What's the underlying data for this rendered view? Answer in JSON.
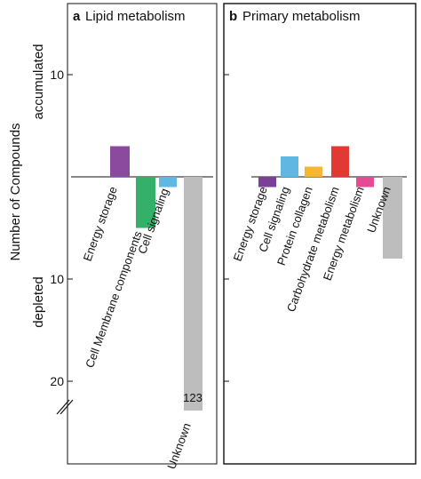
{
  "chart_data": [
    {
      "type": "bar",
      "panel_letter": "a",
      "title": "Lipid metabolism",
      "categories": [
        "Energy storage",
        "Cell Membrane components",
        "Cell signaling",
        "Unknown"
      ],
      "values": [
        3,
        -5,
        -1,
        -123
      ],
      "colors": [
        "#8c4a9e",
        "#35b06a",
        "#5fb7e2",
        "#bdbdbd"
      ],
      "bar_label": "123",
      "axis_break": true,
      "ylabel": "Number of Compounds",
      "ylabel_positive": "accumulated",
      "ylabel_negative": "depleted",
      "y_ticks": [
        {
          "value": 10,
          "label": "10"
        },
        {
          "value": -10,
          "label": "10"
        },
        {
          "value": -20,
          "label": "20"
        }
      ],
      "ylim": [
        -24,
        14
      ]
    },
    {
      "type": "bar",
      "panel_letter": "b",
      "title": "Primary metabolism",
      "categories": [
        "Energy storage",
        "Cell signaling",
        "Protein collagen",
        "Carbohydrate metabolism",
        "Energy metabolism",
        "Unknown"
      ],
      "values": [
        -1,
        2,
        1,
        3,
        -1,
        -8
      ],
      "colors": [
        "#7a3f96",
        "#5fb7e2",
        "#f5b731",
        "#e03a33",
        "#e64a93",
        "#bdbdbd"
      ],
      "ylim": [
        -24,
        14
      ]
    }
  ]
}
